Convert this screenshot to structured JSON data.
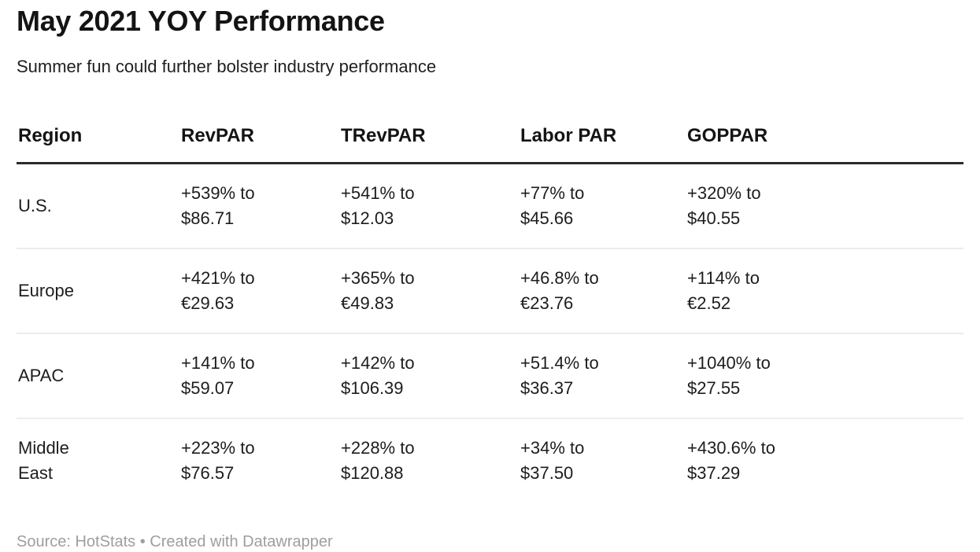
{
  "header": {
    "title": "May 2021 YOY Performance",
    "subtitle": "Summer fun could further bolster industry performance"
  },
  "table": {
    "columns": [
      "Region",
      "RevPAR",
      "TRevPAR",
      "Labor PAR",
      "GOPPAR"
    ],
    "rows": [
      {
        "region_line1": "U.S.",
        "cells": [
          {
            "change": "+539% to",
            "value": "$86.71"
          },
          {
            "change": "+541% to",
            "value": "$12.03"
          },
          {
            "change": "+77% to",
            "value": "$45.66"
          },
          {
            "change": "+320% to",
            "value": "$40.55"
          }
        ]
      },
      {
        "region_line1": "Europe",
        "cells": [
          {
            "change": "+421% to",
            "value": "€29.63"
          },
          {
            "change": "+365% to",
            "value": "€49.83"
          },
          {
            "change": "+46.8% to",
            "value": "€23.76"
          },
          {
            "change": "+114% to",
            "value": "€2.52"
          }
        ]
      },
      {
        "region_line1": "APAC",
        "cells": [
          {
            "change": "+141% to",
            "value": "$59.07"
          },
          {
            "change": "+142% to",
            "value": "$106.39"
          },
          {
            "change": "+51.4% to",
            "value": "$36.37"
          },
          {
            "change": "+1040% to",
            "value": "$27.55"
          }
        ]
      },
      {
        "region_line1": "Middle",
        "region_line2": "East",
        "cells": [
          {
            "change": "+223% to",
            "value": "$76.57"
          },
          {
            "change": "+228% to",
            "value": "$120.88"
          },
          {
            "change": "+34% to",
            "value": "$37.50"
          },
          {
            "change": "+430.6% to",
            "value": "$37.29"
          }
        ]
      }
    ]
  },
  "footer": {
    "text": "Source: HotStats • Created with Datawrapper"
  },
  "colors": {
    "title_text": "#141414",
    "body_text": "#1d1d1d",
    "header_rule": "#2b2b2b",
    "row_divider": "#ececec",
    "footer_text": "#9e9e9e",
    "background": "#ffffff"
  },
  "chart_data": {
    "type": "table",
    "title": "May 2021 YOY Performance",
    "subtitle": "Summer fun could further bolster industry performance",
    "columns": [
      "Region",
      "RevPAR",
      "TRevPAR",
      "Labor PAR",
      "GOPPAR"
    ],
    "rows": [
      [
        "U.S.",
        "+539% to $86.71",
        "+541% to $12.03",
        "+77% to $45.66",
        "+320% to $40.55"
      ],
      [
        "Europe",
        "+421% to €29.63",
        "+365% to €49.83",
        "+46.8% to €23.76",
        "+114% to €2.52"
      ],
      [
        "APAC",
        "+141% to $59.07",
        "+142% to $106.39",
        "+51.4% to $36.37",
        "+1040% to $27.55"
      ],
      [
        "Middle East",
        "+223% to $76.57",
        "+228% to $120.88",
        "+34% to $37.50",
        "+430.6% to $37.29"
      ]
    ],
    "source": "Source: HotStats • Created with Datawrapper",
    "layout": {
      "grid": "row dividers only",
      "header_rule": "thick dark line under header"
    }
  }
}
